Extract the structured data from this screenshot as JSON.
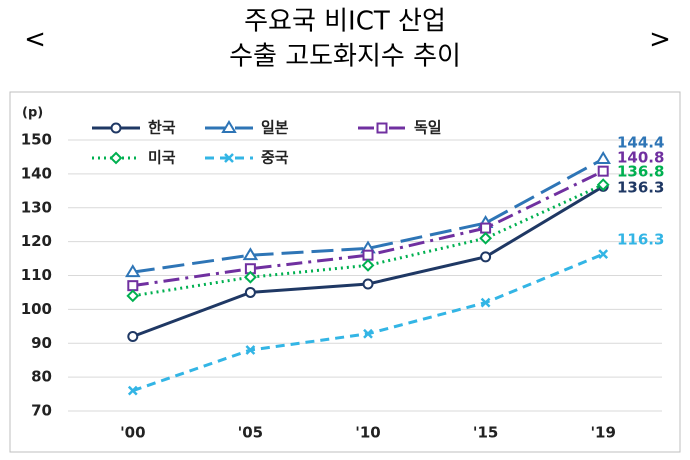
{
  "chart_data": {
    "type": "line",
    "title": [
      "주요국 비ICT 산업",
      "수출 고도화지수 추이"
    ],
    "nav": [
      "<",
      ">"
    ],
    "y_unit": "(p)",
    "categories": [
      "'00",
      "'05",
      "'10",
      "'15",
      "'19"
    ],
    "series": [
      {
        "name": "한국",
        "color": "#1f3864",
        "dash": "solid",
        "marker": "circle",
        "values": [
          92,
          105,
          107.5,
          115.5,
          136.3
        ]
      },
      {
        "name": "일본",
        "color": "#2e75b6",
        "dash": "longdash",
        "marker": "triangle",
        "values": [
          111,
          116,
          118,
          125.5,
          144.4
        ]
      },
      {
        "name": "독일",
        "color": "#7030a0",
        "dash": "dashdot",
        "marker": "square",
        "values": [
          107,
          112,
          116,
          124,
          140.8
        ]
      },
      {
        "name": "미국",
        "color": "#00b050",
        "dash": "dotted",
        "marker": "diamond",
        "values": [
          104,
          109.5,
          113,
          121,
          136.8
        ]
      },
      {
        "name": "중국",
        "color": "#33b5e5",
        "dash": "dashed",
        "marker": "x",
        "values": [
          76,
          88,
          92.8,
          102,
          116.3
        ]
      }
    ],
    "ylim": [
      70,
      150
    ],
    "yticks": [
      70,
      80,
      90,
      100,
      110,
      120,
      130,
      140,
      150
    ],
    "grid": true
  }
}
